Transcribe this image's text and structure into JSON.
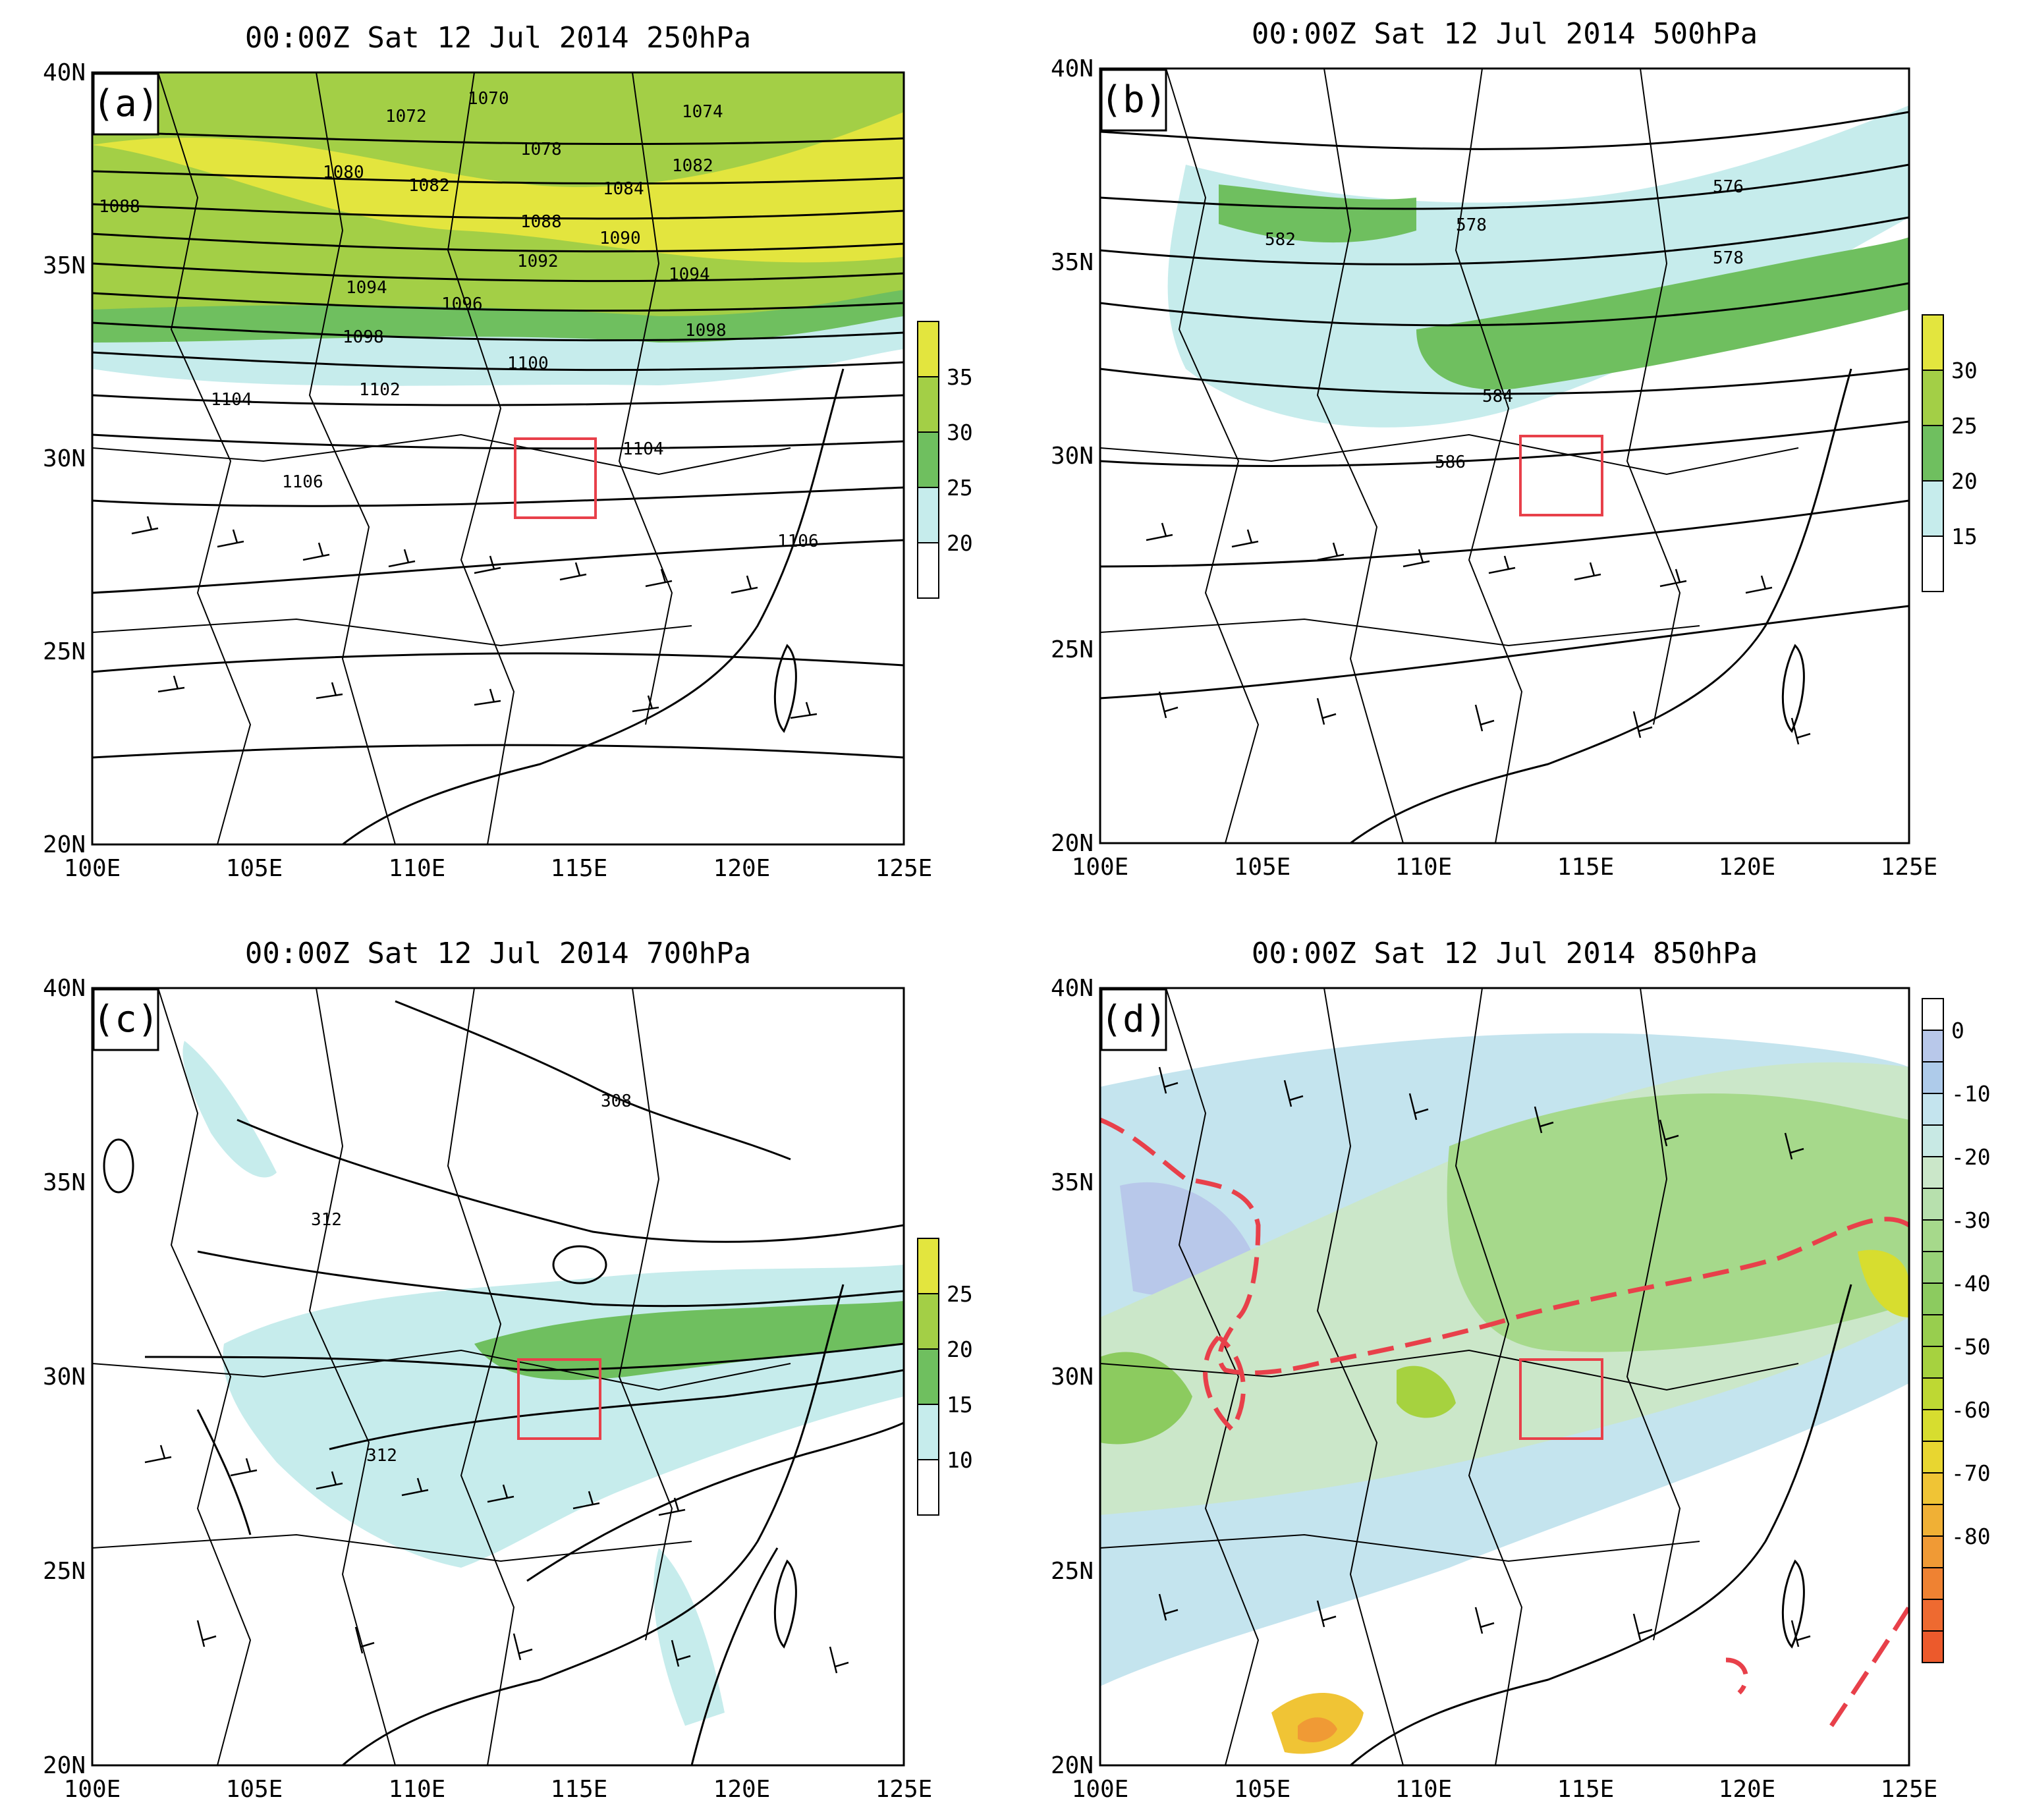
{
  "panels": [
    {
      "id": "a",
      "letter": "(a)",
      "title": "00:00Z Sat 12 Jul 2014 250hPa",
      "lon_range": [
        100,
        125
      ],
      "lat_range": [
        20,
        40
      ],
      "x_ticks": [
        "100E",
        "105E",
        "110E",
        "115E",
        "120E",
        "125E"
      ],
      "y_ticks": [
        "20N",
        "25N",
        "30N",
        "35N",
        "40N"
      ],
      "shading_colors": [
        "#ffffff",
        "#c6ecec",
        "#6fbf5f",
        "#a3cf46",
        "#e3e53e"
      ],
      "colorbar_labels": [
        "20",
        "25",
        "30",
        "35"
      ],
      "contour_labels": [
        "1070",
        "1072",
        "1074",
        "1078",
        "1080",
        "1082",
        "1082",
        "1084",
        "1088",
        "1088",
        "1090",
        "1092",
        "1094",
        "1094",
        "1096",
        "1098",
        "1098",
        "1100",
        "1102",
        "1104",
        "1104",
        "1106",
        "1106"
      ]
    },
    {
      "id": "b",
      "letter": "(b)",
      "title": "00:00Z Sat 12 Jul 2014 500hPa",
      "lon_range": [
        100,
        125
      ],
      "lat_range": [
        20,
        40
      ],
      "x_ticks": [
        "100E",
        "105E",
        "110E",
        "115E",
        "120E",
        "125E"
      ],
      "y_ticks": [
        "20N",
        "25N",
        "30N",
        "35N",
        "40N"
      ],
      "shading_colors": [
        "#ffffff",
        "#c6ecec",
        "#6fbf5f",
        "#a3cf46",
        "#e3e53e"
      ],
      "colorbar_labels": [
        "15",
        "20",
        "25",
        "30"
      ],
      "contour_labels": [
        "576",
        "578",
        "578",
        "582",
        "584",
        "586"
      ]
    },
    {
      "id": "c",
      "letter": "(c)",
      "title": "00:00Z Sat 12 Jul 2014 700hPa",
      "lon_range": [
        100,
        125
      ],
      "lat_range": [
        20,
        40
      ],
      "x_ticks": [
        "100E",
        "105E",
        "110E",
        "115E",
        "120E",
        "125E"
      ],
      "y_ticks": [
        "20N",
        "25N",
        "30N",
        "35N",
        "40N"
      ],
      "shading_colors": [
        "#ffffff",
        "#c6ecec",
        "#6fbf5f",
        "#a3cf46",
        "#e3e53e"
      ],
      "colorbar_labels": [
        "10",
        "15",
        "20",
        "25"
      ],
      "contour_labels": [
        "308",
        "312",
        "312"
      ]
    },
    {
      "id": "d",
      "letter": "(d)",
      "title": "00:00Z Sat 12 Jul 2014 850hPa",
      "lon_range": [
        100,
        125
      ],
      "lat_range": [
        20,
        40
      ],
      "x_ticks": [
        "100E",
        "105E",
        "110E",
        "115E",
        "120E",
        "125E"
      ],
      "y_ticks": [
        "20N",
        "25N",
        "30N",
        "35N",
        "40N"
      ],
      "shading_colors": [
        "#ffffff",
        "#b8c8ea",
        "#c4e4ee",
        "#cbe7c9",
        "#a6d98b",
        "#8ccb5f",
        "#a6d23f",
        "#d7dd2f",
        "#f0c435",
        "#f09a35",
        "#ee6a30"
      ],
      "colorbar_labels": [
        "0",
        "-10",
        "-20",
        "-30",
        "-40",
        "-50",
        "-60",
        "-70",
        "-80"
      ],
      "contour_labels": []
    }
  ],
  "study_area_box": {
    "lon": [
      113,
      115.5
    ],
    "lat": [
      28.5,
      30.5
    ],
    "color": "#e8404a"
  }
}
